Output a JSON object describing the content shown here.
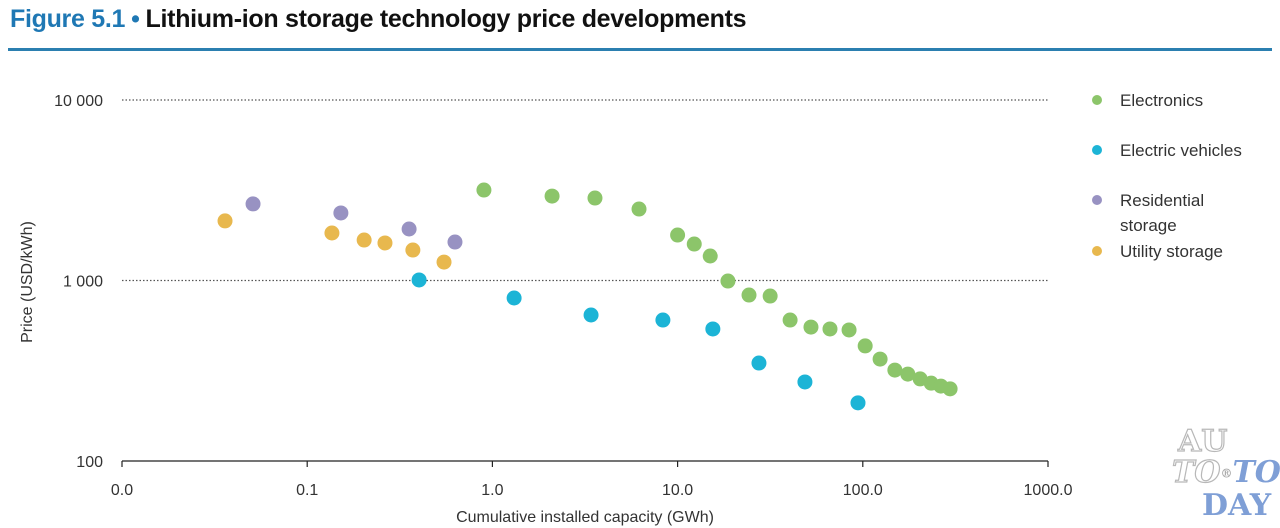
{
  "header": {
    "figure_label": "Figure 5.1",
    "separator": "•",
    "title": "Lithium-ion storage technology price developments"
  },
  "watermark": {
    "line1": "AU",
    "line2a": "TO",
    "line2_mark": "®",
    "line2b": "TO",
    "line3": "DAY"
  },
  "chart_data": {
    "type": "scatter",
    "title": "Lithium-ion storage technology price developments",
    "xlabel": "Cumulative installed capacity (GWh)",
    "ylabel": "Price (USD/kWh)",
    "x_scale": "log",
    "y_scale": "log",
    "xlim": [
      0.01,
      1000
    ],
    "ylim": [
      100,
      10000
    ],
    "x_ticks": [
      0.01,
      0.1,
      1,
      10,
      100,
      1000
    ],
    "x_tick_labels": [
      "0.0",
      "0.1",
      "1.0",
      "10.0",
      "100.0",
      "1000.0"
    ],
    "y_ticks": [
      100,
      1000,
      10000
    ],
    "y_tick_labels": [
      "100",
      "1 000",
      "10 000"
    ],
    "grid": "horizontal dotted at 1 000 and 10 000",
    "legend_position": "right",
    "series": [
      {
        "name": "Electronics",
        "color": "#8cc56a",
        "points": [
          [
            0.9,
            3170
          ],
          [
            2.1,
            2935
          ],
          [
            3.58,
            2863
          ],
          [
            6.19,
            2489
          ],
          [
            10.0,
            1786
          ],
          [
            12.3,
            1592
          ],
          [
            15.0,
            1367
          ],
          [
            18.7,
            993
          ],
          [
            24.3,
            831
          ],
          [
            31.6,
            820
          ],
          [
            40.5,
            604
          ],
          [
            52.5,
            552
          ],
          [
            66.5,
            539
          ],
          [
            84.3,
            532
          ],
          [
            103,
            434
          ],
          [
            124,
            367
          ],
          [
            149,
            319
          ],
          [
            175,
            303
          ],
          [
            204,
            285
          ],
          [
            234,
            270
          ],
          [
            264,
            260
          ],
          [
            296,
            251
          ]
        ]
      },
      {
        "name": "Electric vehicles",
        "color": "#1cb4d6",
        "points": [
          [
            0.402,
            1007
          ],
          [
            1.31,
            800
          ],
          [
            3.41,
            644
          ],
          [
            8.33,
            604
          ],
          [
            15.5,
            539
          ],
          [
            27.5,
            349
          ],
          [
            48.7,
            274
          ],
          [
            94.2,
            210
          ]
        ]
      },
      {
        "name": "Residential storage",
        "color": "#9892c2",
        "points": [
          [
            0.051,
            2656
          ],
          [
            0.152,
            2366
          ],
          [
            0.355,
            1929
          ],
          [
            0.628,
            1633
          ]
        ]
      },
      {
        "name": "Utility storage",
        "color": "#e8b84e",
        "points": [
          [
            0.036,
            2138
          ],
          [
            0.136,
            1833
          ],
          [
            0.203,
            1676
          ],
          [
            0.263,
            1614
          ],
          [
            0.372,
            1475
          ],
          [
            0.548,
            1265
          ]
        ]
      }
    ]
  }
}
